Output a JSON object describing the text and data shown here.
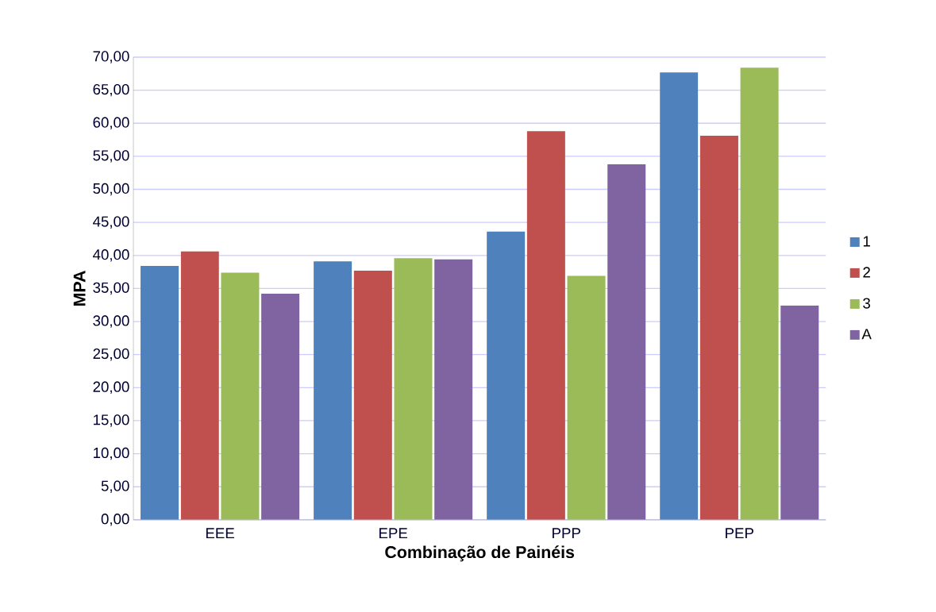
{
  "chart_data": {
    "type": "bar",
    "xlabel": "Combinação de Painéis",
    "ylabel": "MPA",
    "categories": [
      "EEE",
      "EPE",
      "PPP",
      "PEP"
    ],
    "series": [
      {
        "name": "1",
        "color": "#4f81bd",
        "values": [
          38.4,
          39.1,
          43.6,
          67.7
        ]
      },
      {
        "name": "2",
        "color": "#c0504d",
        "values": [
          40.6,
          37.7,
          58.8,
          58.1
        ]
      },
      {
        "name": "3",
        "color": "#9bbb59",
        "values": [
          37.4,
          39.6,
          36.9,
          68.4
        ]
      },
      {
        "name": "A",
        "color": "#8064a2",
        "values": [
          34.2,
          39.4,
          53.8,
          32.4
        ]
      }
    ],
    "ylim": [
      0,
      70
    ],
    "yticks": [
      {
        "value": 0,
        "label": "0,00"
      },
      {
        "value": 5,
        "label": "5,00"
      },
      {
        "value": 10,
        "label": "10,00"
      },
      {
        "value": 15,
        "label": "15,00"
      },
      {
        "value": 20,
        "label": "20,00"
      },
      {
        "value": 25,
        "label": "25,00"
      },
      {
        "value": 30,
        "label": "30,00"
      },
      {
        "value": 35,
        "label": "35,00"
      },
      {
        "value": 40,
        "label": "40,00"
      },
      {
        "value": 45,
        "label": "45,00"
      },
      {
        "value": 50,
        "label": "50,00"
      },
      {
        "value": 55,
        "label": "55,00"
      },
      {
        "value": 60,
        "label": "60,00"
      },
      {
        "value": 65,
        "label": "65,00"
      },
      {
        "value": 70,
        "label": "70,00"
      }
    ],
    "grid": "y",
    "legend": "right"
  }
}
